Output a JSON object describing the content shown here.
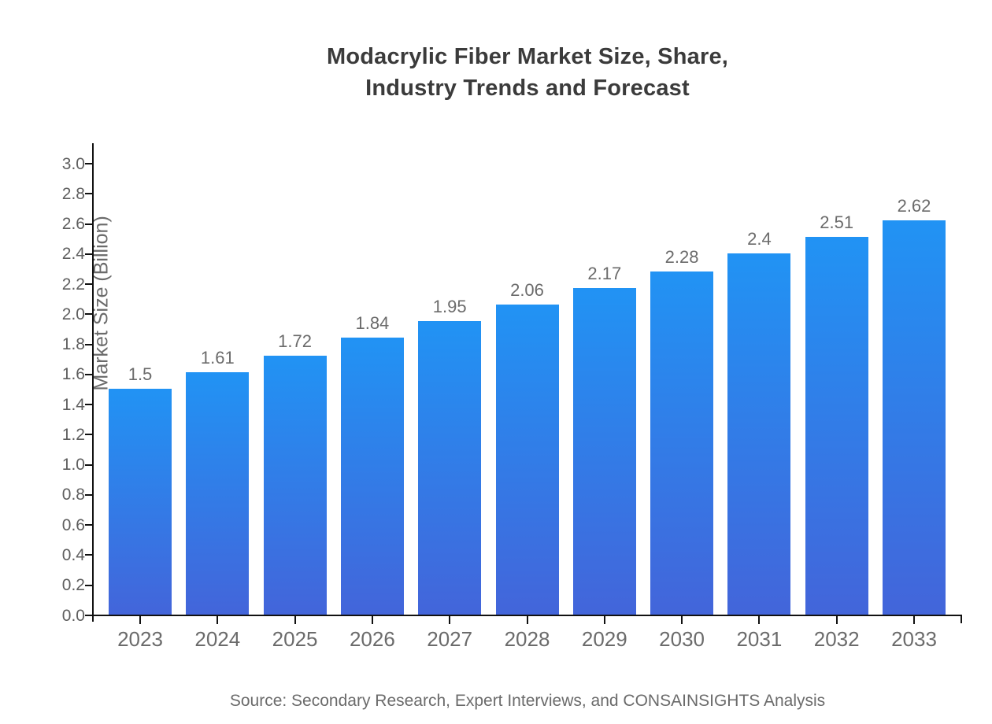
{
  "title": {
    "line1": "Modacrylic Fiber Market Size, Share,",
    "line2": "Industry Trends and Forecast"
  },
  "source": "Source: Secondary Research, Expert Interviews, and CONSAINSIGHTS Analysis",
  "colors": {
    "bar_gradient_top": "#2193F4",
    "bar_gradient_bottom": "#4365DA",
    "axis_line": "#111111",
    "tick_label": "#5f5f5f",
    "title_text": "#3b3b3b",
    "muted_text": "#6b6b6b",
    "background": "#ffffff"
  },
  "chart_data": {
    "type": "bar",
    "title": "Modacrylic Fiber Market Size, Share, Industry Trends and Forecast",
    "categories": [
      "2023",
      "2024",
      "2025",
      "2026",
      "2027",
      "2028",
      "2029",
      "2030",
      "2031",
      "2032",
      "2033"
    ],
    "values": [
      1.5,
      1.61,
      1.72,
      1.84,
      1.95,
      2.06,
      2.17,
      2.28,
      2.4,
      2.51,
      2.62
    ],
    "value_labels": [
      "1.5",
      "1.61",
      "1.72",
      "1.84",
      "1.95",
      "2.06",
      "2.17",
      "2.28",
      "2.4",
      "2.51",
      "2.62"
    ],
    "xlabel": "",
    "ylabel": "Market Size (Billion)",
    "ylim": [
      0.0,
      3.0
    ],
    "ytick_step": 0.2,
    "ytick_labels": [
      "0.0",
      "0.2",
      "0.4",
      "0.6",
      "0.8",
      "1.0",
      "1.2",
      "1.4",
      "1.6",
      "1.8",
      "2.0",
      "2.2",
      "2.4",
      "2.6",
      "2.8",
      "3.0"
    ],
    "grid": false,
    "legend": "none",
    "bar_color_top": "#2193F4",
    "bar_color_bottom": "#4365DA",
    "source": "Source: Secondary Research, Expert Interviews, and CONSAINSIGHTS Analysis"
  }
}
